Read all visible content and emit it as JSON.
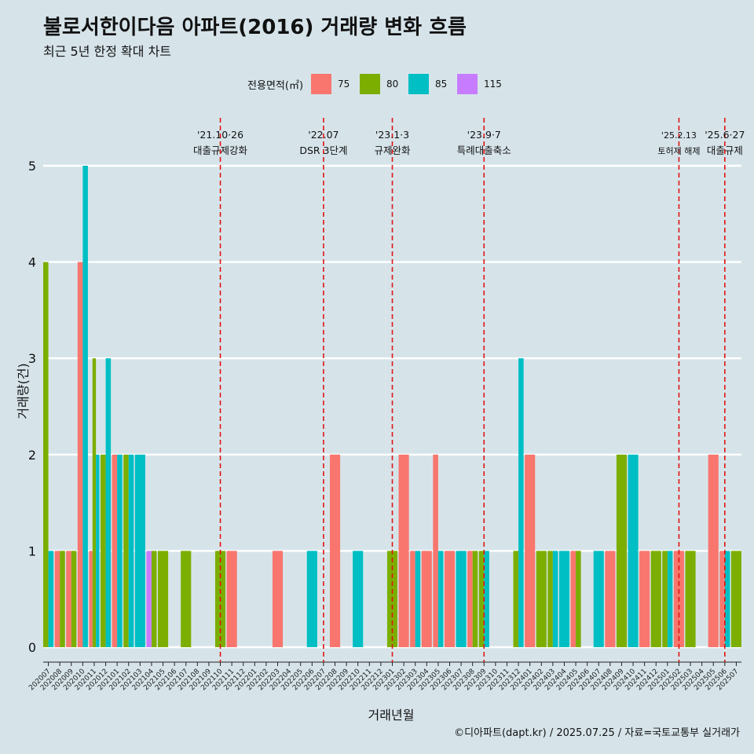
{
  "title": "불로서한이다음 아파트(2016) 거래량 변화 흐름",
  "subtitle": "최근 5년 한정 확대 차트",
  "caption": "©디아파트(dapt.kr) / 2025.07.25 / 자료=국토교통부 실거래가",
  "legend": {
    "title": "전용면적(㎡)",
    "items": [
      {
        "label": "75",
        "color": "#F8766D"
      },
      {
        "label": "80",
        "color": "#7CAE00"
      },
      {
        "label": "85",
        "color": "#00BFC4"
      },
      {
        "label": "115",
        "color": "#C77CFF"
      }
    ]
  },
  "chart_data": {
    "type": "bar",
    "xlabel": "거래년월",
    "ylabel": "거래량(건)",
    "ylim": [
      0,
      5
    ],
    "yticks": [
      0,
      1,
      2,
      3,
      4,
      5
    ],
    "grid": "horizontal",
    "legend_position": "top",
    "categories": [
      "202007",
      "202008",
      "202009",
      "202010",
      "202011",
      "202012",
      "202101",
      "202102",
      "202103",
      "202104",
      "202105",
      "202106",
      "202107",
      "202108",
      "202109",
      "202110",
      "202111",
      "202112",
      "202201",
      "202202",
      "202203",
      "202204",
      "202205",
      "202206",
      "202207",
      "202208",
      "202209",
      "202210",
      "202211",
      "202212",
      "202301",
      "202302",
      "202303",
      "202304",
      "202305",
      "202306",
      "202307",
      "202308",
      "202309",
      "202310",
      "202311",
      "202312",
      "202401",
      "202402",
      "202403",
      "202404",
      "202405",
      "202406",
      "202407",
      "202408",
      "202409",
      "202410",
      "202411",
      "202412",
      "202501",
      "202502",
      "202503",
      "202504",
      "202505",
      "202506",
      "202507"
    ],
    "transactions": [
      {
        "month": "202007",
        "bars": [
          {
            "area": "80",
            "count": 4
          },
          {
            "area": "85",
            "count": 1
          }
        ]
      },
      {
        "month": "202008",
        "bars": [
          {
            "area": "75",
            "count": 1
          },
          {
            "area": "80",
            "count": 1
          }
        ]
      },
      {
        "month": "202009",
        "bars": [
          {
            "area": "75",
            "count": 1
          },
          {
            "area": "80",
            "count": 1
          }
        ]
      },
      {
        "month": "202010",
        "bars": [
          {
            "area": "75",
            "count": 4
          },
          {
            "area": "85",
            "count": 5
          }
        ]
      },
      {
        "month": "202011",
        "bars": [
          {
            "area": "75",
            "count": 1
          },
          {
            "area": "80",
            "count": 3
          },
          {
            "area": "85",
            "count": 2
          }
        ]
      },
      {
        "month": "202012",
        "bars": [
          {
            "area": "80",
            "count": 2
          },
          {
            "area": "85",
            "count": 3
          }
        ]
      },
      {
        "month": "202101",
        "bars": [
          {
            "area": "75",
            "count": 2
          },
          {
            "area": "85",
            "count": 2
          }
        ]
      },
      {
        "month": "202102",
        "bars": [
          {
            "area": "80",
            "count": 2
          },
          {
            "area": "85",
            "count": 2
          }
        ]
      },
      {
        "month": "202103",
        "bars": [
          {
            "area": "85",
            "count": 2
          }
        ]
      },
      {
        "month": "202104",
        "bars": [
          {
            "area": "115",
            "count": 1
          },
          {
            "area": "80",
            "count": 1
          }
        ]
      },
      {
        "month": "202105",
        "bars": [
          {
            "area": "80",
            "count": 1
          }
        ]
      },
      {
        "month": "202107",
        "bars": [
          {
            "area": "80",
            "count": 1
          }
        ]
      },
      {
        "month": "202110",
        "bars": [
          {
            "area": "80",
            "count": 1
          }
        ]
      },
      {
        "month": "202111",
        "bars": [
          {
            "area": "75",
            "count": 1
          }
        ]
      },
      {
        "month": "202203",
        "bars": [
          {
            "area": "75",
            "count": 1
          }
        ]
      },
      {
        "month": "202206",
        "bars": [
          {
            "area": "85",
            "count": 1
          }
        ]
      },
      {
        "month": "202208",
        "bars": [
          {
            "area": "75",
            "count": 2
          }
        ]
      },
      {
        "month": "202210",
        "bars": [
          {
            "area": "85",
            "count": 1
          }
        ]
      },
      {
        "month": "202301",
        "bars": [
          {
            "area": "80",
            "count": 1
          }
        ]
      },
      {
        "month": "202302",
        "bars": [
          {
            "area": "75",
            "count": 2
          }
        ]
      },
      {
        "month": "202303",
        "bars": [
          {
            "area": "75",
            "count": 1
          },
          {
            "area": "85",
            "count": 1
          }
        ]
      },
      {
        "month": "202304",
        "bars": [
          {
            "area": "75",
            "count": 1
          }
        ]
      },
      {
        "month": "202305",
        "bars": [
          {
            "area": "75",
            "count": 2
          },
          {
            "area": "85",
            "count": 1
          }
        ]
      },
      {
        "month": "202306",
        "bars": [
          {
            "area": "75",
            "count": 1
          }
        ]
      },
      {
        "month": "202307",
        "bars": [
          {
            "area": "85",
            "count": 1
          }
        ]
      },
      {
        "month": "202308",
        "bars": [
          {
            "area": "75",
            "count": 1
          },
          {
            "area": "80",
            "count": 1
          }
        ]
      },
      {
        "month": "202309",
        "bars": [
          {
            "area": "80",
            "count": 1
          },
          {
            "area": "85",
            "count": 1
          }
        ]
      },
      {
        "month": "202312",
        "bars": [
          {
            "area": "80",
            "count": 1
          },
          {
            "area": "85",
            "count": 3
          }
        ]
      },
      {
        "month": "202401",
        "bars": [
          {
            "area": "75",
            "count": 2
          }
        ]
      },
      {
        "month": "202402",
        "bars": [
          {
            "area": "80",
            "count": 1
          }
        ]
      },
      {
        "month": "202403",
        "bars": [
          {
            "area": "80",
            "count": 1
          },
          {
            "area": "85",
            "count": 1
          }
        ]
      },
      {
        "month": "202404",
        "bars": [
          {
            "area": "85",
            "count": 1
          }
        ]
      },
      {
        "month": "202405",
        "bars": [
          {
            "area": "75",
            "count": 1
          },
          {
            "area": "80",
            "count": 1
          }
        ]
      },
      {
        "month": "202407",
        "bars": [
          {
            "area": "85",
            "count": 1
          }
        ]
      },
      {
        "month": "202408",
        "bars": [
          {
            "area": "75",
            "count": 1
          }
        ]
      },
      {
        "month": "202409",
        "bars": [
          {
            "area": "80",
            "count": 2
          }
        ]
      },
      {
        "month": "202410",
        "bars": [
          {
            "area": "85",
            "count": 2
          }
        ]
      },
      {
        "month": "202411",
        "bars": [
          {
            "area": "75",
            "count": 1
          }
        ]
      },
      {
        "month": "202412",
        "bars": [
          {
            "area": "80",
            "count": 1
          }
        ]
      },
      {
        "month": "202501",
        "bars": [
          {
            "area": "80",
            "count": 1
          },
          {
            "area": "85",
            "count": 1
          }
        ]
      },
      {
        "month": "202502",
        "bars": [
          {
            "area": "75",
            "count": 1
          }
        ]
      },
      {
        "month": "202503",
        "bars": [
          {
            "area": "80",
            "count": 1
          }
        ]
      },
      {
        "month": "202505",
        "bars": [
          {
            "area": "75",
            "count": 2
          }
        ]
      },
      {
        "month": "202506",
        "bars": [
          {
            "area": "75",
            "count": 1
          },
          {
            "area": "85",
            "count": 1
          }
        ]
      },
      {
        "month": "202507",
        "bars": [
          {
            "area": "80",
            "count": 1
          }
        ]
      }
    ],
    "annotations": [
      {
        "month": "202110",
        "date": "'21.10·26",
        "label": "대출규제강화"
      },
      {
        "month": "202207",
        "date": "'22.07",
        "label": "DSR 3단계"
      },
      {
        "month": "202301",
        "date": "'23.1·3",
        "label": "규제완화"
      },
      {
        "month": "202309",
        "date": "'23.9·7",
        "label": "특례대출축소"
      },
      {
        "month": "202502",
        "date": "'25.2.13",
        "label": "토허제 해제"
      },
      {
        "month": "202506",
        "date": "'25.6·27",
        "label": "대출규제"
      }
    ]
  }
}
